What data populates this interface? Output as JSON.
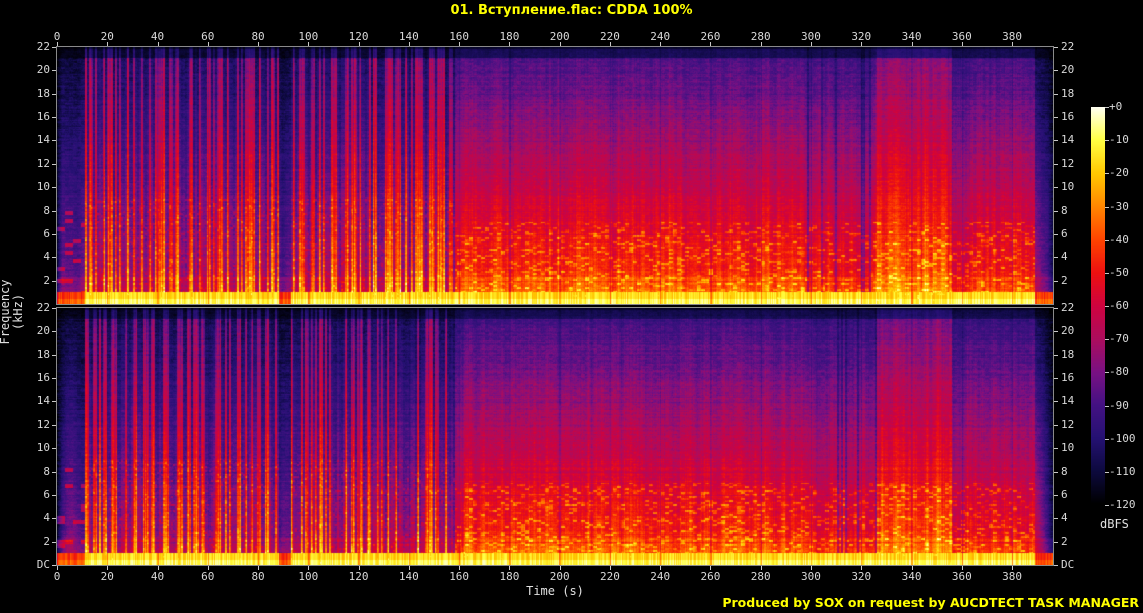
{
  "header": {
    "title": "01. Вступление.flac: CDDA 100%",
    "title_color": "#ffff00"
  },
  "footer": {
    "credit": "Produced by SOX on request by AUCDTECT TASK MANAGER",
    "color": "#ffff00"
  },
  "axes": {
    "time_label": "Time (s)",
    "freq_label": "Frequency (kHz)",
    "time_ticks": [
      "0",
      "20",
      "40",
      "60",
      "80",
      "100",
      "120",
      "140",
      "160",
      "180",
      "200",
      "220",
      "240",
      "260",
      "280",
      "300",
      "320",
      "340",
      "360",
      "380"
    ],
    "freq_ticks_top_panel": [
      "22",
      "20",
      "18",
      "16",
      "14",
      "12",
      "10",
      "8",
      "6",
      "4",
      "2"
    ],
    "freq_ticks_bottom_panel": [
      "22",
      "20",
      "18",
      "16",
      "14",
      "12",
      "10",
      "8",
      "6",
      "4",
      "2",
      "DC"
    ],
    "tick_text_color": "#d9d9d9"
  },
  "colorbar": {
    "unit": "dBFS",
    "labels": [
      "+0",
      "-10",
      "-20",
      "-30",
      "-40",
      "-50",
      "-60",
      "-70",
      "-80",
      "-90",
      "-100",
      "-110",
      "-120"
    ]
  },
  "chart_data": {
    "type": "heatmap",
    "title": "01. Вступление.flac: CDDA 100%",
    "xlabel": "Time (s)",
    "ylabel": "Frequency (kHz)",
    "zlabel": "dBFS",
    "x_range_s": [
      0,
      396
    ],
    "y_range_khz": [
      0,
      22
    ],
    "z_range_dbfs": [
      -120,
      0
    ],
    "x_tick_step_s": 20,
    "y_tick_step_khz": 2,
    "z_tick_step_db": 10,
    "channels": [
      "left (top panel)",
      "right (bottom panel)"
    ],
    "grid": "faint 20 s vertical and 2 kHz horizontal lines",
    "legend_position": "color bar at right, +0 dBFS (white) top to -120 dBFS (black) bottom",
    "palette_dbfs_colors": [
      {
        "dbfs": 0,
        "hex": "#fffff2"
      },
      {
        "dbfs": -10,
        "hex": "#ffff42"
      },
      {
        "dbfs": -20,
        "hex": "#ffc800"
      },
      {
        "dbfs": -30,
        "hex": "#ff8700"
      },
      {
        "dbfs": -40,
        "hex": "#ff4400"
      },
      {
        "dbfs": -50,
        "hex": "#ee1111"
      },
      {
        "dbfs": -60,
        "hex": "#cf0340"
      },
      {
        "dbfs": -70,
        "hex": "#ad0d5e"
      },
      {
        "dbfs": -80,
        "hex": "#7a1183"
      },
      {
        "dbfs": -90,
        "hex": "#441183"
      },
      {
        "dbfs": -100,
        "hex": "#251173"
      },
      {
        "dbfs": -110,
        "hex": "#0d0a3e"
      },
      {
        "dbfs": -120,
        "hex": "#000000"
      }
    ],
    "sections": [
      {
        "t_s": [
          0,
          11
        ],
        "description": "quiet intro: low level, purple background, sparse melodic traces below 8 kHz, moderate bass line"
      },
      {
        "t_s": [
          11,
          88
        ],
        "description": "rhythmic music: dense vertical percussive stripes reaching ~14-16 kHz (red/orange), bright yellow bass band"
      },
      {
        "t_s": [
          88,
          93
        ],
        "description": "short quiet gap (purple)"
      },
      {
        "t_s": [
          93,
          157
        ],
        "description": "rhythmic section continues with strong stripes"
      },
      {
        "t_s": [
          157,
          298
        ],
        "description": "loud smooth wash: red up to ~10 kHz fading to purple near 20 kHz, dotted orange texture below 7 kHz, bright yellow bass"
      },
      {
        "t_s": [
          298,
          326
        ],
        "description": "wash with darker vertical striping"
      },
      {
        "t_s": [
          326,
          356
        ],
        "description": "brightest block: red/pink energy extending to ~20 kHz"
      },
      {
        "t_s": [
          356,
          362
        ],
        "description": "brief dip (darker)"
      },
      {
        "t_s": [
          362,
          389
        ],
        "description": "medium loud wash"
      },
      {
        "t_s": [
          389,
          396
        ],
        "description": "fade-out to dark blue/black"
      }
    ],
    "notes_visible": [
      "dark anti-alias shelf above ~21 kHz on both channels",
      "both channels show nearly identical structure"
    ]
  }
}
